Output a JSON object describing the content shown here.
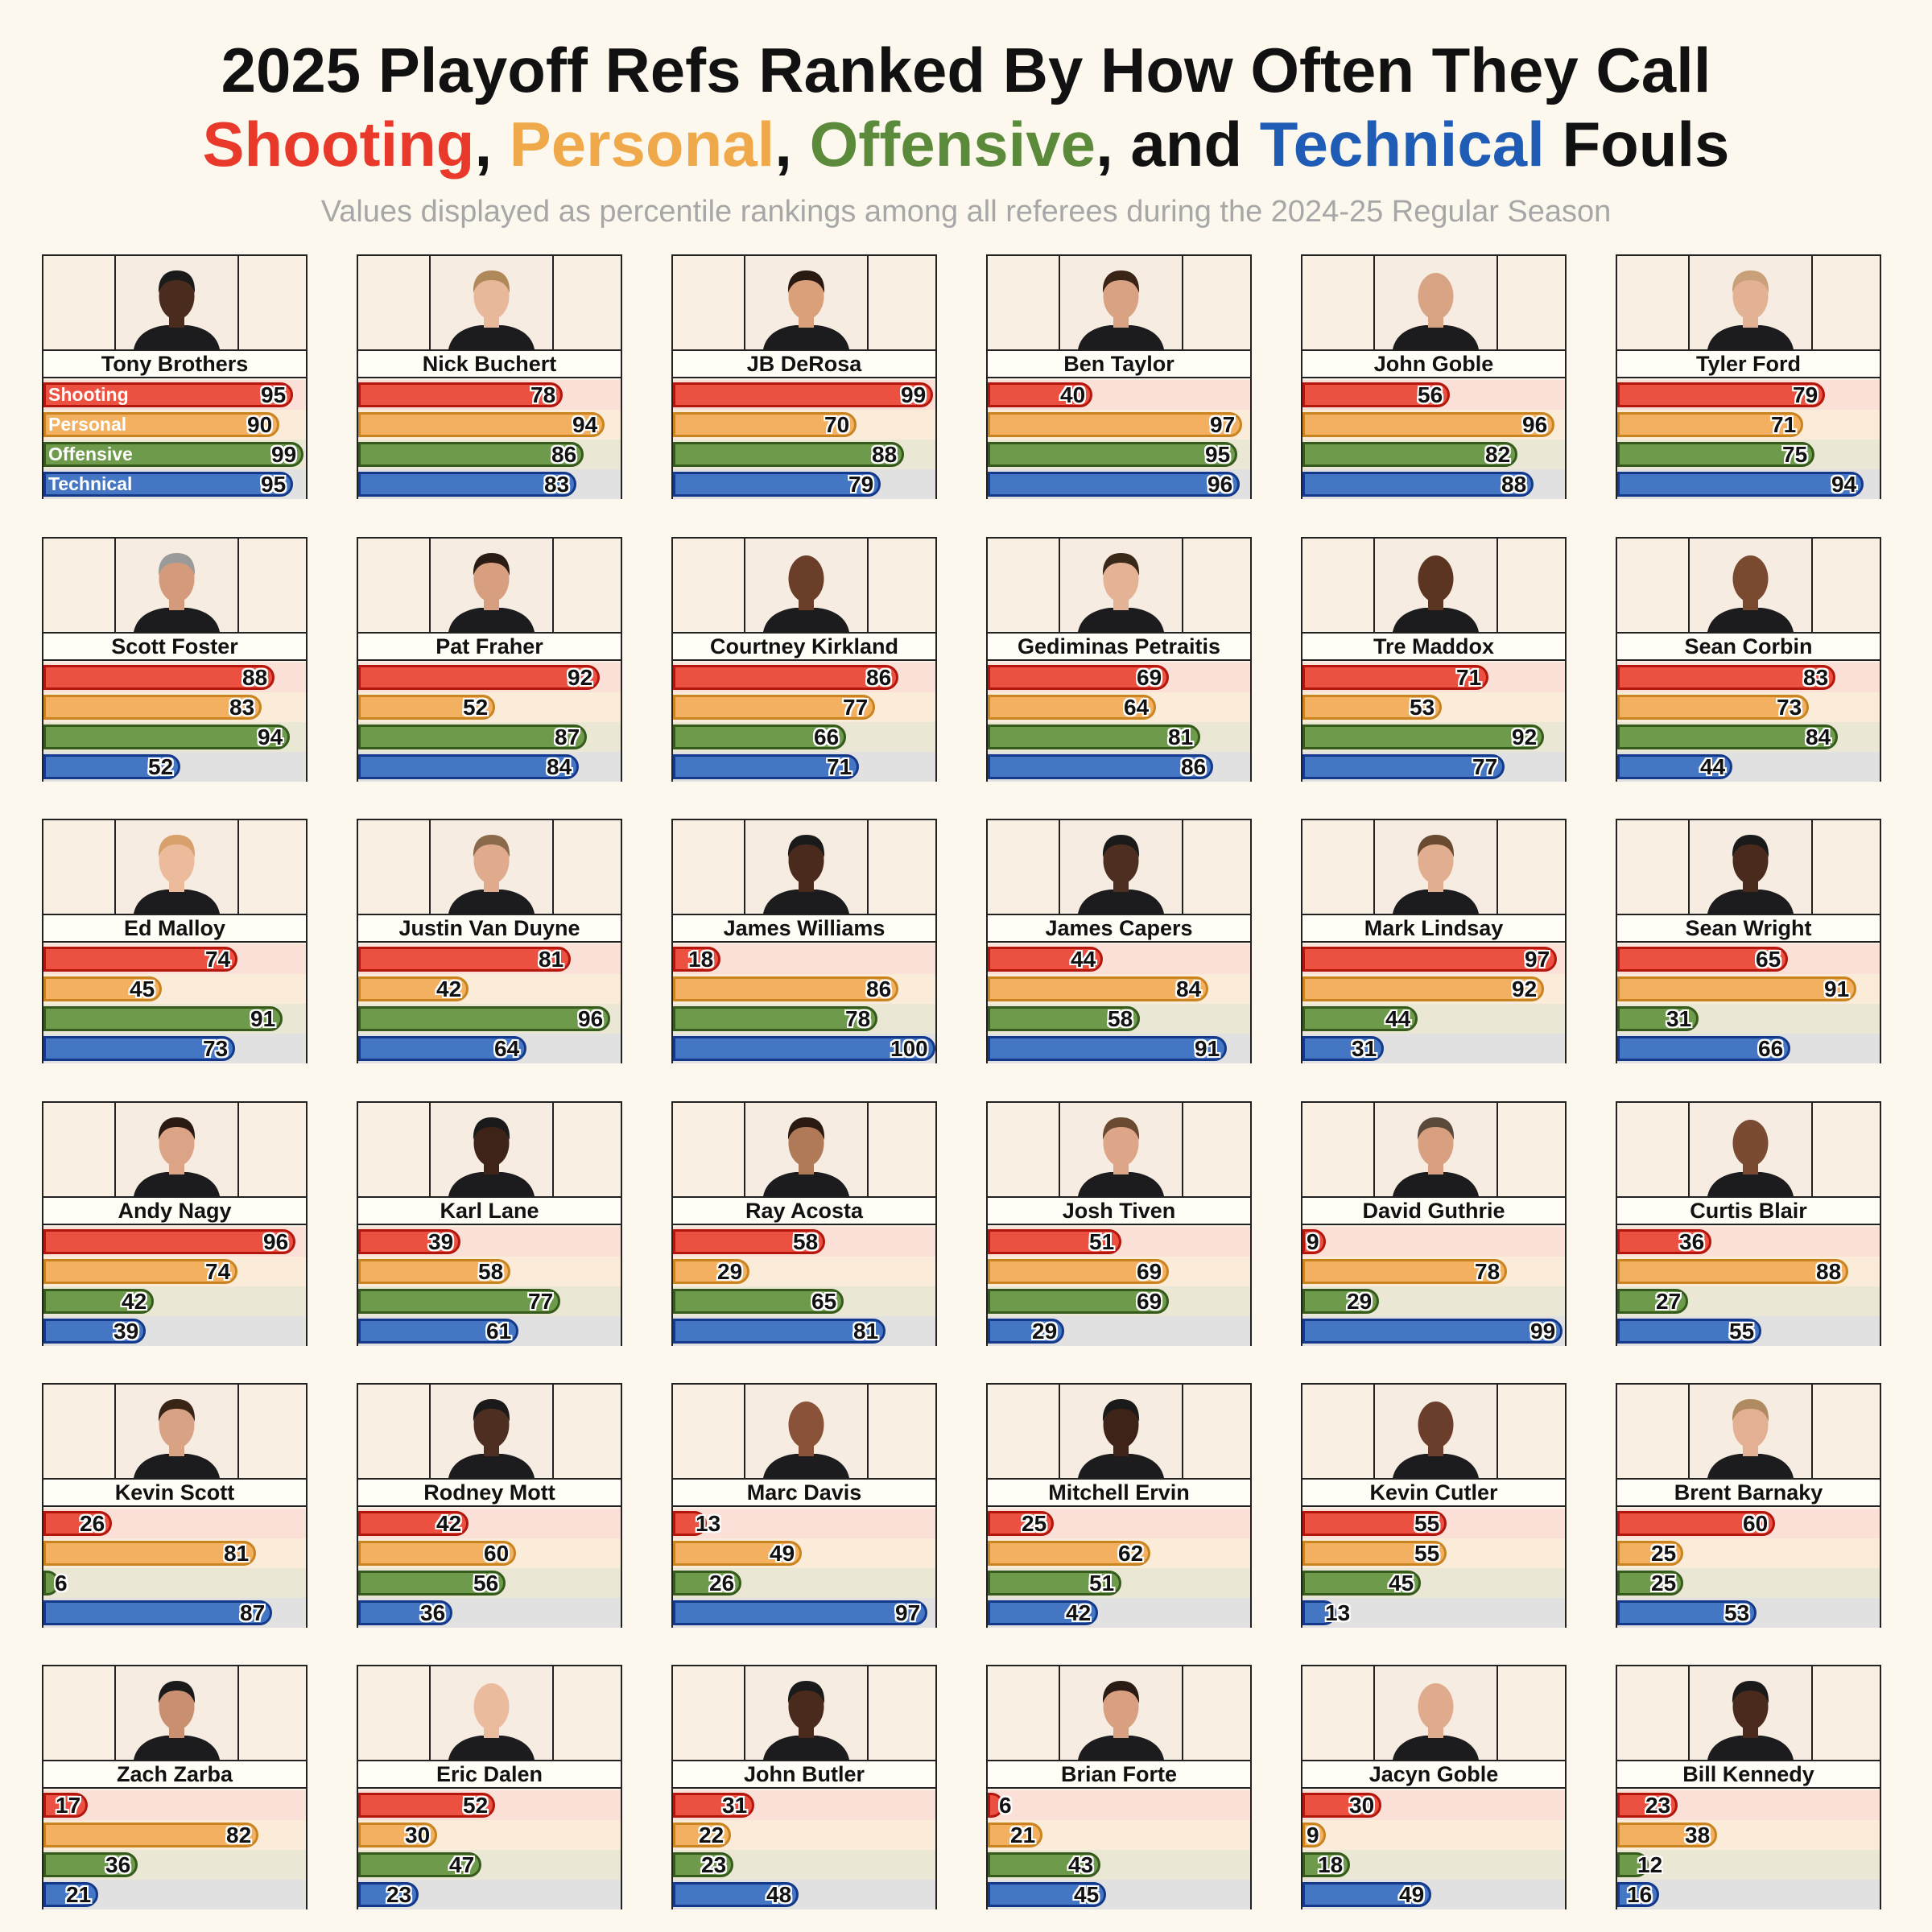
{
  "title": {
    "line1": "2025 Playoff Refs Ranked By How Often They Call",
    "segments": [
      {
        "text": "Shooting",
        "color": "#e8392b"
      },
      {
        "text": ", ",
        "color": "#111111"
      },
      {
        "text": "Personal",
        "color": "#f0a94a"
      },
      {
        "text": ", ",
        "color": "#111111"
      },
      {
        "text": "Offensive",
        "color": "#5a8a3a"
      },
      {
        "text": ", and ",
        "color": "#111111"
      },
      {
        "text": "Technical",
        "color": "#1f5cb5"
      },
      {
        "text": " Fouls",
        "color": "#111111"
      }
    ],
    "subtitle": "Values displayed as percentile rankings among all referees during the 2024-25 Regular Season"
  },
  "chart_data": {
    "type": "bar",
    "categories": [
      "Shooting",
      "Personal",
      "Offensive",
      "Technical"
    ],
    "colors": {
      "Shooting": {
        "fill": "#ec5040",
        "border": "#b3160c",
        "track": "#fbe0d8"
      },
      "Personal": {
        "fill": "#f3b060",
        "border": "#c98420",
        "track": "#fbebd9"
      },
      "Offensive": {
        "fill": "#6e9a4c",
        "border": "#355a1c",
        "track": "#ebe7d5"
      },
      "Technical": {
        "fill": "#4476c4",
        "border": "#14388a",
        "track": "#e1e1e1"
      }
    },
    "xlim": [
      0,
      100
    ],
    "referees": [
      {
        "name": "Tony Brothers",
        "values": [
          95,
          90,
          99,
          95
        ]
      },
      {
        "name": "Nick Buchert",
        "values": [
          78,
          94,
          86,
          83
        ]
      },
      {
        "name": "JB DeRosa",
        "values": [
          99,
          70,
          88,
          79
        ]
      },
      {
        "name": "Ben Taylor",
        "values": [
          40,
          97,
          95,
          96
        ]
      },
      {
        "name": "John Goble",
        "values": [
          56,
          96,
          82,
          88
        ]
      },
      {
        "name": "Tyler Ford",
        "values": [
          79,
          71,
          75,
          94
        ]
      },
      {
        "name": "Scott Foster",
        "values": [
          88,
          83,
          94,
          52
        ]
      },
      {
        "name": "Pat Fraher",
        "values": [
          92,
          52,
          87,
          84
        ]
      },
      {
        "name": "Courtney Kirkland",
        "values": [
          86,
          77,
          66,
          71
        ]
      },
      {
        "name": "Gediminas Petraitis",
        "values": [
          69,
          64,
          81,
          86
        ]
      },
      {
        "name": "Tre Maddox",
        "values": [
          71,
          53,
          92,
          77
        ]
      },
      {
        "name": "Sean Corbin",
        "values": [
          83,
          73,
          84,
          44
        ]
      },
      {
        "name": "Ed Malloy",
        "values": [
          74,
          45,
          91,
          73
        ]
      },
      {
        "name": "Justin Van Duyne",
        "values": [
          81,
          42,
          96,
          64
        ]
      },
      {
        "name": "James Williams",
        "values": [
          18,
          86,
          78,
          100
        ]
      },
      {
        "name": "James Capers",
        "values": [
          44,
          84,
          58,
          91
        ]
      },
      {
        "name": "Mark Lindsay",
        "values": [
          97,
          92,
          44,
          31
        ]
      },
      {
        "name": "Sean Wright",
        "values": [
          65,
          91,
          31,
          66
        ]
      },
      {
        "name": "Andy Nagy",
        "values": [
          96,
          74,
          42,
          39
        ]
      },
      {
        "name": "Karl Lane",
        "values": [
          39,
          58,
          77,
          61
        ]
      },
      {
        "name": "Ray Acosta",
        "values": [
          58,
          29,
          65,
          81
        ]
      },
      {
        "name": "Josh Tiven",
        "values": [
          51,
          69,
          69,
          29
        ]
      },
      {
        "name": "David Guthrie",
        "values": [
          9,
          78,
          29,
          99
        ]
      },
      {
        "name": "Curtis Blair",
        "values": [
          36,
          88,
          27,
          55
        ]
      },
      {
        "name": "Kevin Scott",
        "values": [
          26,
          81,
          6,
          87
        ]
      },
      {
        "name": "Rodney Mott",
        "values": [
          42,
          60,
          56,
          36
        ]
      },
      {
        "name": "Marc Davis",
        "values": [
          13,
          49,
          26,
          97
        ]
      },
      {
        "name": "Mitchell Ervin",
        "values": [
          25,
          62,
          51,
          42
        ]
      },
      {
        "name": "Kevin Cutler",
        "values": [
          55,
          55,
          45,
          13
        ]
      },
      {
        "name": "Brent Barnaky",
        "values": [
          60,
          25,
          25,
          53
        ]
      },
      {
        "name": "Zach Zarba",
        "values": [
          17,
          82,
          36,
          21
        ]
      },
      {
        "name": "Eric Dalen",
        "values": [
          52,
          30,
          47,
          23
        ]
      },
      {
        "name": "John Butler",
        "values": [
          31,
          22,
          23,
          48
        ]
      },
      {
        "name": "Brian Forte",
        "values": [
          6,
          21,
          43,
          45
        ]
      },
      {
        "name": "Jacyn Goble",
        "values": [
          30,
          9,
          18,
          49
        ]
      },
      {
        "name": "Bill Kennedy",
        "values": [
          23,
          38,
          12,
          16
        ]
      }
    ],
    "portraits": [
      {
        "skin": "#4a2c1e",
        "hair": "#1a1a1a",
        "bald": false
      },
      {
        "skin": "#e8b89a",
        "hair": "#b0895a",
        "bald": false
      },
      {
        "skin": "#d9a07a",
        "hair": "#2a1a12",
        "bald": false
      },
      {
        "skin": "#d8a283",
        "hair": "#3a2416",
        "bald": false
      },
      {
        "skin": "#d9a484",
        "hair": "#8a6a50",
        "bald": true
      },
      {
        "skin": "#e3b295",
        "hair": "#c8a07a",
        "bald": false
      },
      {
        "skin": "#d49a7c",
        "hair": "#9a9a9a",
        "bald": false
      },
      {
        "skin": "#d89e80",
        "hair": "#2a1c14",
        "bald": false
      },
      {
        "skin": "#6a3e28",
        "hair": "#1a1a1a",
        "bald": true
      },
      {
        "skin": "#e4b294",
        "hair": "#3a2818",
        "bald": false
      },
      {
        "skin": "#5c3422",
        "hair": "#1a1a1a",
        "bald": true
      },
      {
        "skin": "#7a4a30",
        "hair": "#1a1a1a",
        "bald": true
      },
      {
        "skin": "#ecbb9c",
        "hair": "#d8a06a",
        "bald": false
      },
      {
        "skin": "#e0aa8c",
        "hair": "#8a6a4a",
        "bald": false
      },
      {
        "skin": "#4a2a1c",
        "hair": "#1a1a1a",
        "bald": false
      },
      {
        "skin": "#4e2e20",
        "hair": "#1a1a1a",
        "bald": false
      },
      {
        "skin": "#e2ae90",
        "hair": "#6a4a30",
        "bald": false
      },
      {
        "skin": "#4a2a1c",
        "hair": "#1a1a1a",
        "bald": false
      },
      {
        "skin": "#dca486",
        "hair": "#2a1a12",
        "bald": false
      },
      {
        "skin": "#3e2418",
        "hair": "#1a1a1a",
        "bald": false
      },
      {
        "skin": "#b07a58",
        "hair": "#2a1a12",
        "bald": false
      },
      {
        "skin": "#dea688",
        "hair": "#6a4a30",
        "bald": false
      },
      {
        "skin": "#d8a080",
        "hair": "#5a4a3a",
        "bald": false
      },
      {
        "skin": "#7a4a32",
        "hair": "#1a1a1a",
        "bald": true
      },
      {
        "skin": "#d8a284",
        "hair": "#3a2416",
        "bald": false
      },
      {
        "skin": "#4e2e20",
        "hair": "#1a1a1a",
        "bald": false
      },
      {
        "skin": "#8a5238",
        "hair": "#1a1a1a",
        "bald": true
      },
      {
        "skin": "#3e2418",
        "hair": "#1a1a1a",
        "bald": false
      },
      {
        "skin": "#6a3e2a",
        "hair": "#1a1a1a",
        "bald": true
      },
      {
        "skin": "#e4b094",
        "hair": "#b08a60",
        "bald": false
      },
      {
        "skin": "#c89070",
        "hair": "#1a1a1a",
        "bald": false
      },
      {
        "skin": "#ebbb9d",
        "hair": "#c09070",
        "bald": true
      },
      {
        "skin": "#4a2a1c",
        "hair": "#1a1a1a",
        "bald": false
      },
      {
        "skin": "#d8a080",
        "hair": "#2a1c14",
        "bald": false
      },
      {
        "skin": "#e0aa8c",
        "hair": "#9a7a5a",
        "bald": true
      },
      {
        "skin": "#4a2a1c",
        "hair": "#1a1a1a",
        "bald": false
      }
    ]
  }
}
